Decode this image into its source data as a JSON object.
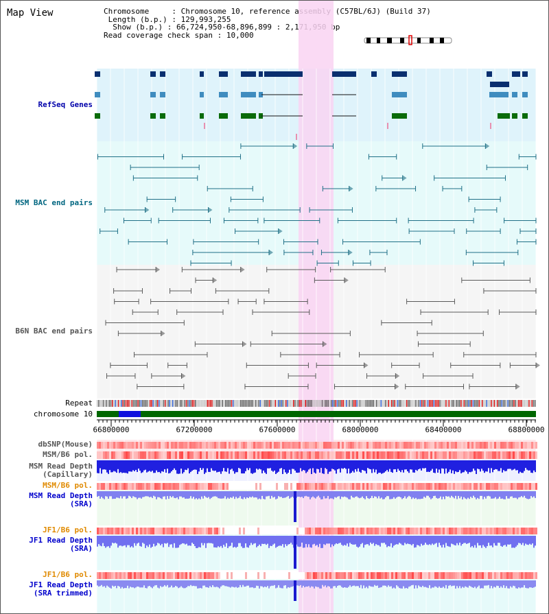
{
  "title": "Map View",
  "info": {
    "chromosome_label": "Chromosome",
    "chromosome_value": "Chromosome 10, reference assembly (C57BL/6J) (Build 37)",
    "length_label": "Length (b.p.)",
    "length_value": "129,993,255",
    "show_label": "Show (b.p.)",
    "show_value": "66,724,950-68,896,899 : 2,171,950 bp",
    "coverage_label": "Read coverage check span",
    "coverage_value": "10,000"
  },
  "tracks": {
    "refseq": "RefSeq Genes",
    "msm_bac": "MSM BAC end pairs",
    "b6n_bac": "B6N BAC end pairs",
    "repeat": "Repeat",
    "chromosome": "chromosome 10",
    "dbsnp": "dbSNP(Mouse)",
    "msm_b6_pol": "MSM/B6 pol.",
    "msm_read_depth_cap_1": "MSM Read Depth",
    "msm_read_depth_cap_2": "(Capillary)",
    "msm_b6_pol_2": "MSM/B6 pol.",
    "msm_read_depth_sra_1": "MSM Read Depth",
    "msm_read_depth_sra_2": "(SRA)",
    "jf1_b6_pol": "JF1/B6 pol.",
    "jf1_read_depth_sra_1": "JF1 Read Depth",
    "jf1_read_depth_sra_2": "(SRA)",
    "jf1_b6_pol_2": "JF1/B6 pol.",
    "jf1_read_depth_trim_1": "JF1 Read Depth",
    "jf1_read_depth_trim_2": "(SRA trimmed)"
  },
  "axis": {
    "ticks": [
      "66800000",
      "67200000",
      "67600000",
      "68000000",
      "68400000",
      "68800000"
    ]
  },
  "colors": {
    "refseq_bg": "#dff3fb",
    "msm_bg": "#e6fafa",
    "b6n_bg": "#f5f5f5",
    "highlight": "#f9d4f2",
    "refseq_label": "#0000aa",
    "msm_label": "#006680",
    "b6n_label": "#555555",
    "pol_orange": "#e08a00",
    "depth_blue": "#0000cc"
  }
}
